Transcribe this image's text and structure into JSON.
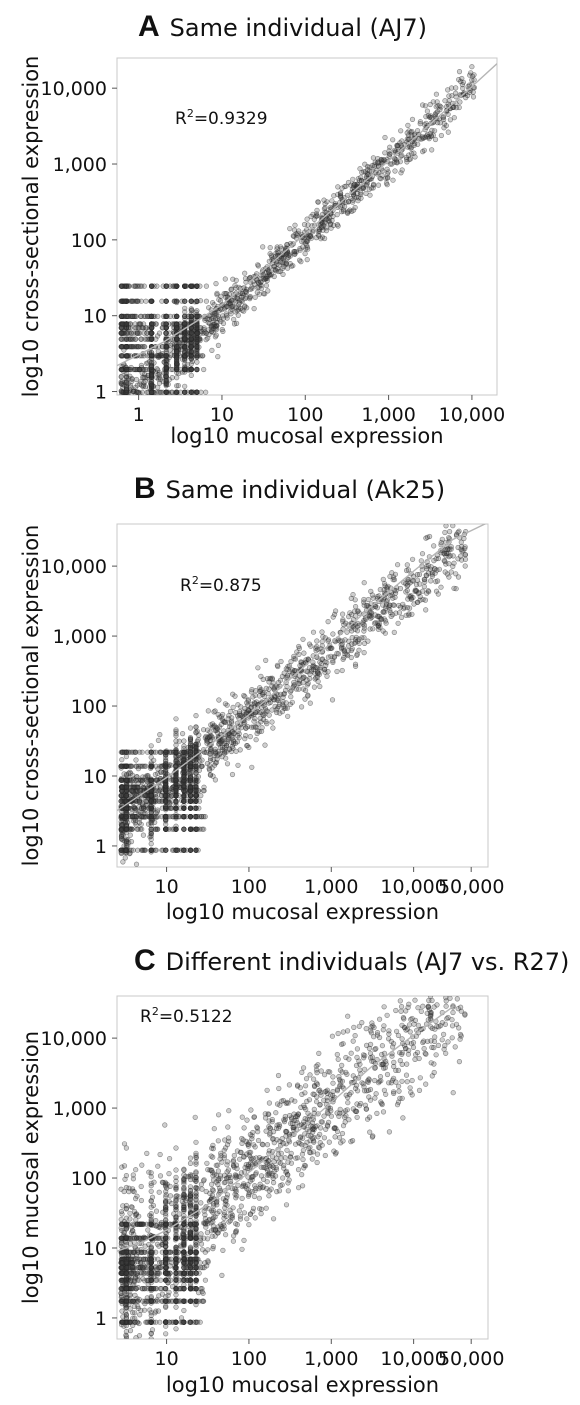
{
  "chart_data": [
    {
      "type": "scatter",
      "panel_letter": "A",
      "title": "Same individual (AJ7)",
      "xlabel": "log10 mucosal expression",
      "ylabel": "log10 cross-sectional expression",
      "x_scale": "log",
      "y_scale": "log",
      "xlim": [
        0.55,
        20000
      ],
      "ylim": [
        0.9,
        25000
      ],
      "x_ticks": [
        1,
        10,
        100,
        1000,
        10000
      ],
      "x_tick_labels": [
        "1",
        "10",
        "100",
        "1,000",
        "10,000"
      ],
      "y_ticks": [
        1,
        10,
        100,
        1000,
        10000
      ],
      "y_tick_labels": [
        "1",
        "10",
        "100",
        "1,000",
        "10,000"
      ],
      "annotation": {
        "prefix": "R",
        "sup": "2",
        "suffix": "=0.9329",
        "r2": 0.9329
      },
      "trend_line": {
        "points": [
          [
            0.55,
            2.2
          ],
          [
            2,
            4.5
          ],
          [
            5,
            8.5
          ],
          [
            10,
            14
          ],
          [
            30,
            38
          ],
          [
            100,
            120
          ],
          [
            300,
            350
          ],
          [
            1000,
            1100
          ],
          [
            3000,
            3200
          ],
          [
            10000,
            10500
          ],
          [
            20000,
            21000
          ]
        ]
      },
      "point_model": {
        "slope": 1.0,
        "intercept": 0.04,
        "scatter_sd": 0.13,
        "n_points": 2400
      },
      "point_color": "#333333"
    },
    {
      "type": "scatter",
      "panel_letter": "B",
      "title": "Same individual (Ak25)",
      "xlabel": "log10 mucosal expression",
      "ylabel": "log10 cross-sectional expression",
      "x_scale": "log",
      "y_scale": "log",
      "xlim": [
        2.5,
        80000
      ],
      "ylim": [
        0.5,
        40000
      ],
      "x_ticks": [
        10,
        100,
        1000,
        10000,
        50000
      ],
      "x_tick_labels": [
        "10",
        "100",
        "1,000",
        "10,000",
        "50,000"
      ],
      "y_ticks": [
        1,
        10,
        100,
        1000,
        10000
      ],
      "y_tick_labels": [
        "1",
        "10",
        "100",
        "1,000",
        "10,000"
      ],
      "annotation": {
        "prefix": "R",
        "sup": "2",
        "suffix": "=0.875",
        "r2": 0.875
      },
      "trend_line": {
        "points": [
          [
            2.5,
            3.2
          ],
          [
            5,
            5.5
          ],
          [
            10,
            9.5
          ],
          [
            30,
            25
          ],
          [
            100,
            75
          ],
          [
            300,
            230
          ],
          [
            1000,
            800
          ],
          [
            3000,
            2600
          ],
          [
            10000,
            8500
          ],
          [
            30000,
            24000
          ],
          [
            80000,
            42000
          ]
        ]
      },
      "point_model": {
        "slope": 0.95,
        "intercept": -0.05,
        "scatter_sd": 0.22,
        "n_points": 2600
      },
      "point_color": "#333333"
    },
    {
      "type": "scatter",
      "panel_letter": "C",
      "title": "Different individuals (AJ7 vs. R27)",
      "xlabel": "log10 mucosal expression",
      "ylabel": "log10 mucosal expression",
      "x_scale": "log",
      "y_scale": "log",
      "xlim": [
        2.5,
        80000
      ],
      "ylim": [
        0.5,
        40000
      ],
      "x_ticks": [
        10,
        100,
        1000,
        10000,
        50000
      ],
      "x_tick_labels": [
        "10",
        "100",
        "1,000",
        "10,000",
        "50,000"
      ],
      "y_ticks": [
        1,
        10,
        100,
        1000,
        10000
      ],
      "y_tick_labels": [
        "1",
        "10",
        "100",
        "1,000",
        "10,000"
      ],
      "annotation": {
        "prefix": "R",
        "sup": "2",
        "suffix": "=0.5122",
        "r2": 0.5122
      },
      "trend_line": {
        "points": [
          [
            2.5,
            9
          ],
          [
            5,
            12
          ],
          [
            10,
            18
          ],
          [
            30,
            40
          ],
          [
            100,
            120
          ],
          [
            300,
            350
          ],
          [
            1000,
            1200
          ],
          [
            3000,
            3800
          ],
          [
            10000,
            11000
          ],
          [
            30000,
            28000
          ]
        ]
      },
      "point_model": {
        "slope": 0.95,
        "intercept": 0.2,
        "scatter_sd": 0.42,
        "n_points": 2800
      },
      "point_color": "#333333"
    }
  ]
}
